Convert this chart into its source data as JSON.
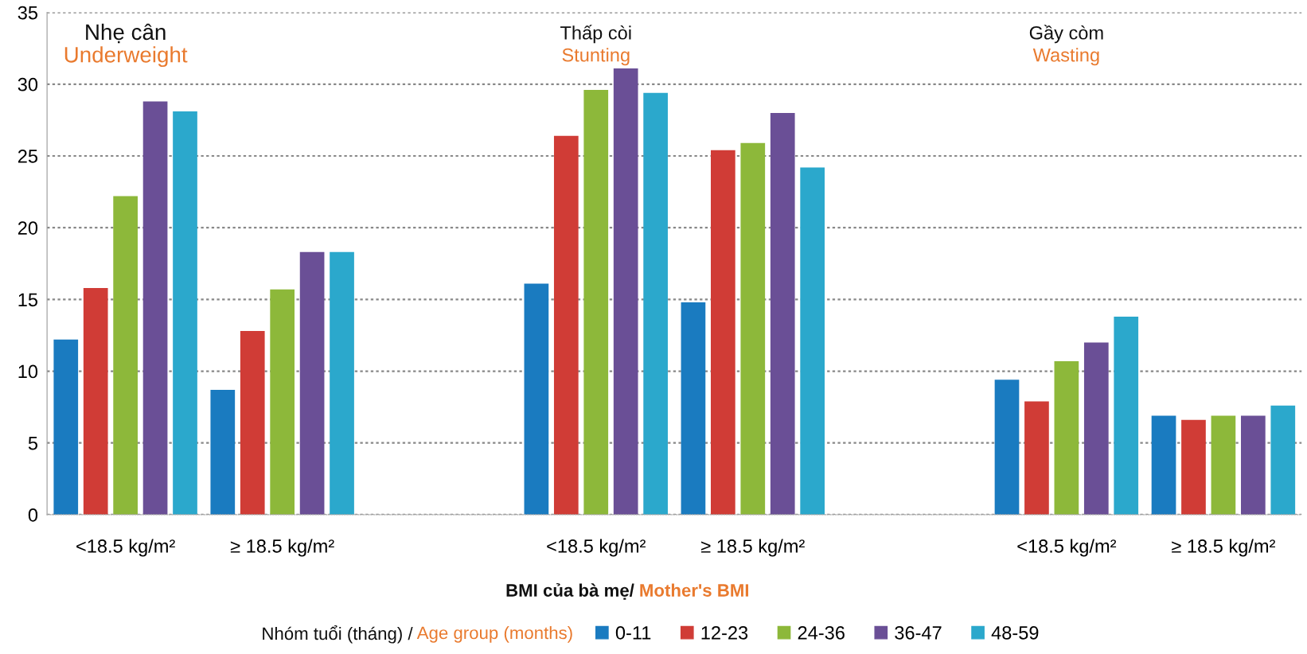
{
  "chart_data": {
    "type": "bar",
    "categories": [
      "<18.5 kg/m²",
      "≥ 18.5 kg/m²",
      null,
      "<18.5 kg/m²",
      "≥ 18.5 kg/m²",
      null,
      "<18.5 kg/m²",
      "≥ 18.5 kg/m²"
    ],
    "series": [
      {
        "name": "0-11",
        "color": "#1a7bc0",
        "values": [
          12.2,
          8.7,
          null,
          16.1,
          14.8,
          null,
          9.4,
          6.9
        ]
      },
      {
        "name": "12-23",
        "color": "#d03c36",
        "values": [
          15.8,
          12.8,
          null,
          26.4,
          25.4,
          null,
          7.9,
          6.6
        ]
      },
      {
        "name": "24-36",
        "color": "#8db83a",
        "values": [
          22.2,
          15.7,
          null,
          29.6,
          25.9,
          null,
          10.7,
          6.9
        ]
      },
      {
        "name": "36-47",
        "color": "#6a4f96",
        "values": [
          28.8,
          18.3,
          null,
          31.1,
          28.0,
          null,
          12.0,
          6.9
        ]
      },
      {
        "name": "48-59",
        "color": "#2ba8cc",
        "values": [
          28.1,
          18.3,
          null,
          29.4,
          24.2,
          null,
          13.8,
          7.6
        ]
      }
    ],
    "ylim": [
      0,
      35
    ],
    "yticks": [
      0,
      5,
      10,
      15,
      20,
      25,
      30,
      35
    ],
    "xlabel": "BMI của bà mẹ/ Mother's BMI",
    "legend_title": "Nhóm tuổi (tháng) / Age group (months)",
    "annotations": [
      "Nhẹ cân",
      "Underweight",
      "Thấp còi",
      "Stunting",
      "Gầy còm",
      "Wasting"
    ],
    "grid": "y",
    "legend": "bottom",
    "marker": "square"
  }
}
